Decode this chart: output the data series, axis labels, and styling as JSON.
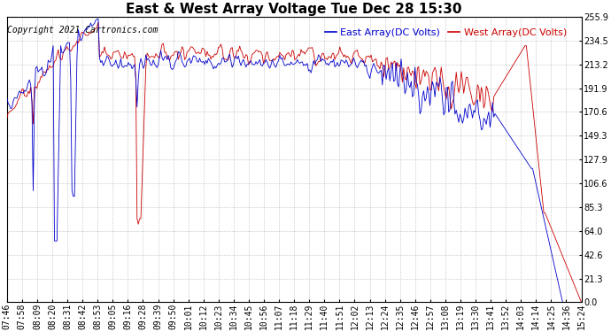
{
  "title": "East & West Array Voltage Tue Dec 28 15:30",
  "copyright": "Copyright 2021 Cartronics.com",
  "legend_east": "East Array(DC Volts)",
  "legend_west": "West Array(DC Volts)",
  "east_color": "#0000cc",
  "west_color": "#cc0000",
  "background_color": "#ffffff",
  "grid_color": "#aaaaaa",
  "ylim": [
    0.0,
    255.9
  ],
  "yticks": [
    0.0,
    21.3,
    42.6,
    64.0,
    85.3,
    106.6,
    127.9,
    149.3,
    170.6,
    191.9,
    213.2,
    234.5,
    255.9
  ],
  "xtick_labels": [
    "07:46",
    "07:58",
    "08:09",
    "08:20",
    "08:31",
    "08:42",
    "08:53",
    "09:05",
    "09:16",
    "09:28",
    "09:39",
    "09:50",
    "10:01",
    "10:12",
    "10:23",
    "10:34",
    "10:45",
    "10:56",
    "11:07",
    "11:18",
    "11:29",
    "11:40",
    "11:51",
    "12:02",
    "12:13",
    "12:24",
    "12:35",
    "12:46",
    "12:57",
    "13:08",
    "13:19",
    "13:30",
    "13:41",
    "13:52",
    "14:03",
    "14:14",
    "14:25",
    "14:36",
    "15:24"
  ],
  "title_fontsize": 11,
  "label_fontsize": 7,
  "copyright_fontsize": 7,
  "legend_fontsize": 8
}
